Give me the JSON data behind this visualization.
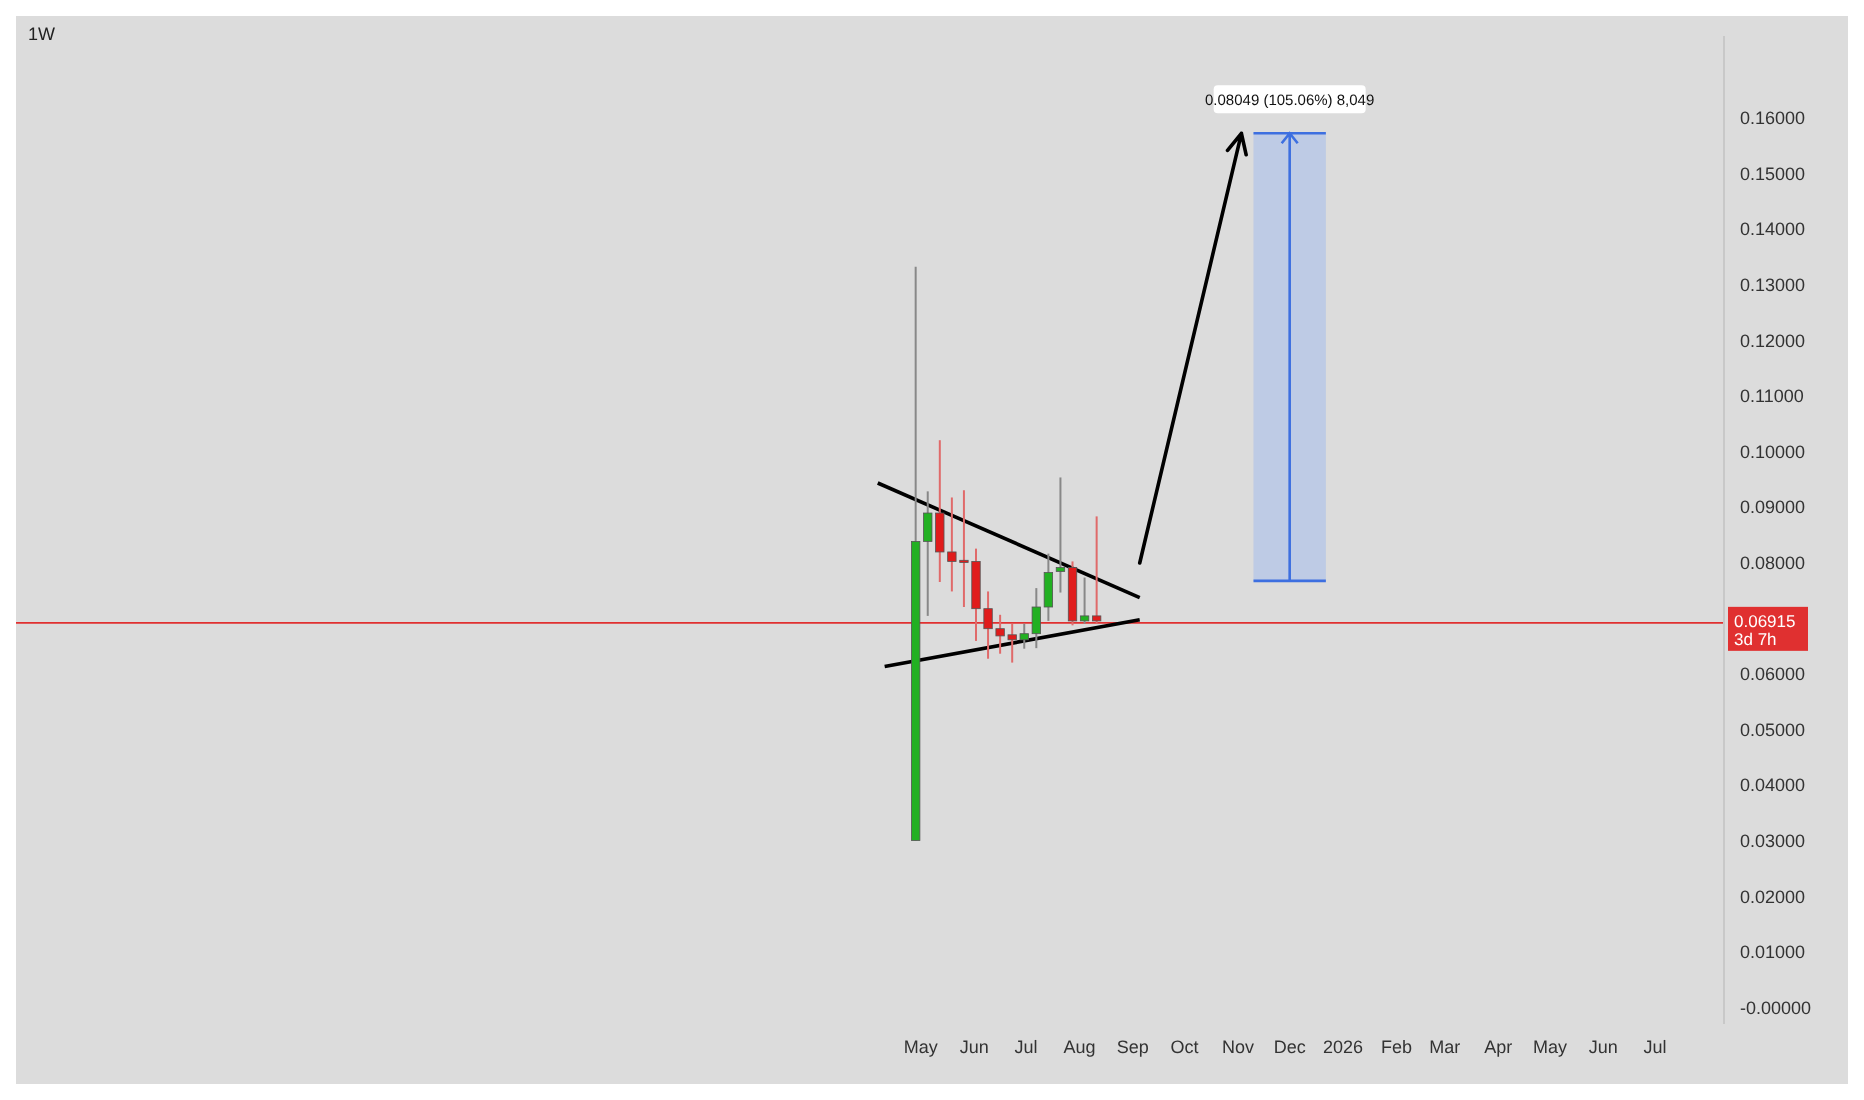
{
  "chart_data": {
    "type": "candlestick",
    "title": "1W",
    "x": [
      "2025-04-28",
      "2025-05-05",
      "2025-05-12",
      "2025-05-19",
      "2025-05-26",
      "2025-06-02",
      "2025-06-09",
      "2025-06-16",
      "2025-06-23",
      "2025-06-30",
      "2025-07-07",
      "2025-07-14",
      "2025-07-21",
      "2025-07-28",
      "2025-08-04",
      "2025-08-11"
    ],
    "ohlc": [
      [
        0.03,
        0.1332,
        0.03,
        0.0838
      ],
      [
        0.0838,
        0.0928,
        0.0704,
        0.0889
      ],
      [
        0.0889,
        0.102,
        0.0765,
        0.0819
      ],
      [
        0.0819,
        0.0917,
        0.0748,
        0.0802
      ],
      [
        0.0804,
        0.093,
        0.072,
        0.08
      ],
      [
        0.0802,
        0.0825,
        0.0659,
        0.0717
      ],
      [
        0.0717,
        0.0748,
        0.0627,
        0.0681
      ],
      [
        0.0681,
        0.0706,
        0.0636,
        0.0668
      ],
      [
        0.067,
        0.069,
        0.062,
        0.0661
      ],
      [
        0.0661,
        0.069,
        0.0645,
        0.0672
      ],
      [
        0.0672,
        0.0754,
        0.0646,
        0.072
      ],
      [
        0.072,
        0.0816,
        0.0695,
        0.0782
      ],
      [
        0.0784,
        0.0953,
        0.0746,
        0.0791
      ],
      [
        0.0791,
        0.0802,
        0.0687,
        0.0695
      ],
      [
        0.0695,
        0.0773,
        0.069,
        0.0704
      ],
      [
        0.0704,
        0.0883,
        0.069,
        0.0695
      ]
    ],
    "series": [
      {
        "type": "line",
        "color": "#000000",
        "x": [
          "2025-04-06",
          "2025-09-05"
        ],
        "values": [
          0.0943,
          0.0737
        ]
      },
      {
        "type": "line",
        "color": "#000000",
        "x": [
          "2025-04-10",
          "2025-09-05"
        ],
        "values": [
          0.0613,
          0.0697
        ]
      }
    ],
    "xlim": [
      "2023-11-23",
      "2026-08-10"
    ],
    "xticks": [
      {
        "value": "2025-05-01",
        "label": "May"
      },
      {
        "value": "2025-06-01",
        "label": "Jun"
      },
      {
        "value": "2025-07-01",
        "label": "Jul"
      },
      {
        "value": "2025-08-01",
        "label": "Aug"
      },
      {
        "value": "2025-09-01",
        "label": "Sep"
      },
      {
        "value": "2025-10-01",
        "label": "Oct"
      },
      {
        "value": "2025-11-01",
        "label": "Nov"
      },
      {
        "value": "2025-12-01",
        "label": "Dec"
      },
      {
        "value": "2026-01-01",
        "label": "2026"
      },
      {
        "value": "2026-02-01",
        "label": "Feb"
      },
      {
        "value": "2026-03-01",
        "label": "Mar"
      },
      {
        "value": "2026-04-01",
        "label": "Apr"
      },
      {
        "value": "2026-05-01",
        "label": "May"
      },
      {
        "value": "2026-06-01",
        "label": "Jun"
      },
      {
        "value": "2026-07-01",
        "label": "Jul"
      }
    ],
    "ylim": [
      -0.003,
      0.1747
    ],
    "yticks": [
      {
        "value": 0,
        "label": "-0.00000"
      },
      {
        "value": 0.01,
        "label": "0.01000"
      },
      {
        "value": 0.02,
        "label": "0.02000"
      },
      {
        "value": 0.03,
        "label": "0.03000"
      },
      {
        "value": 0.04,
        "label": "0.04000"
      },
      {
        "value": 0.05,
        "label": "0.05000"
      },
      {
        "value": 0.06,
        "label": "0.06000"
      },
      {
        "value": 0.08,
        "label": "0.08000"
      },
      {
        "value": 0.09,
        "label": "0.09000"
      },
      {
        "value": 0.1,
        "label": "0.10000"
      },
      {
        "value": 0.11,
        "label": "0.11000"
      },
      {
        "value": 0.12,
        "label": "0.12000"
      },
      {
        "value": 0.13,
        "label": "0.13000"
      },
      {
        "value": 0.14,
        "label": "0.14000"
      },
      {
        "value": 0.15,
        "label": "0.15000"
      },
      {
        "value": 0.16,
        "label": "0.16000"
      }
    ],
    "ref_lines": [
      {
        "axis": "y",
        "value": 0.06915,
        "label": "0.06915",
        "color": "#e03030"
      }
    ],
    "bands": [
      {
        "axis": "y",
        "from": 0.0767,
        "to": 0.1572,
        "color": "#b9c8e6"
      }
    ],
    "annotations": [
      {
        "text": "0.08049 (105.06%) 8,049",
        "x": "2025-12-01",
        "y": 0.1572
      },
      "3d 7h"
    ]
  }
}
